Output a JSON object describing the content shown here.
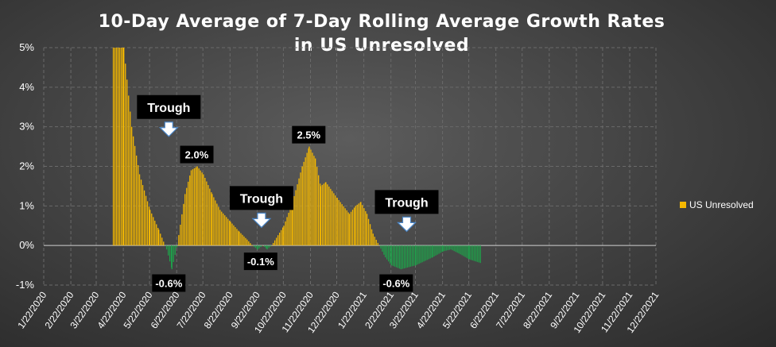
{
  "chart_data": {
    "type": "area",
    "title": "10-Day Average of 7-Day Rolling Average Growth Rates",
    "subtitle": "in US Unresolved",
    "xlabel": "",
    "ylabel": "",
    "y_tick_labels": [
      "5%",
      "4%",
      "3%",
      "2%",
      "1%",
      "0%",
      "-1%"
    ],
    "ylim": [
      -1,
      5
    ],
    "x_tick_labels": [
      "1/22/2020",
      "2/22/2020",
      "3/22/2020",
      "4/22/2020",
      "5/22/2020",
      "6/22/2020",
      "7/22/2020",
      "8/22/2020",
      "9/22/2020",
      "10/22/2020",
      "11/22/2020",
      "12/22/2020",
      "1/22/2021",
      "2/22/2021",
      "3/22/2021",
      "4/22/2021",
      "5/22/2021",
      "6/22/2021",
      "7/22/2021",
      "8/22/2021",
      "9/22/2021",
      "10/22/2021",
      "11/22/2021",
      "12/22/2021"
    ],
    "grid": true,
    "legend_position": "right",
    "series": [
      {
        "name": "US Unresolved",
        "positive_color": "#f5b800",
        "negative_color": "#1fa14a",
        "points": [
          {
            "x": "4/10/2020",
            "y": 5.0
          },
          {
            "x": "4/22/2020",
            "y": 5.0
          },
          {
            "x": "5/1/2020",
            "y": 3.0
          },
          {
            "x": "5/10/2020",
            "y": 1.8
          },
          {
            "x": "5/22/2020",
            "y": 0.9
          },
          {
            "x": "6/1/2020",
            "y": 0.4
          },
          {
            "x": "6/10/2020",
            "y": -0.1
          },
          {
            "x": "6/16/2020",
            "y": -0.6
          },
          {
            "x": "6/22/2020",
            "y": 0.0
          },
          {
            "x": "7/1/2020",
            "y": 1.3
          },
          {
            "x": "7/8/2020",
            "y": 1.9
          },
          {
            "x": "7/15/2020",
            "y": 2.0
          },
          {
            "x": "7/22/2020",
            "y": 1.8
          },
          {
            "x": "8/1/2020",
            "y": 1.3
          },
          {
            "x": "8/10/2020",
            "y": 0.9
          },
          {
            "x": "8/22/2020",
            "y": 0.6
          },
          {
            "x": "9/1/2020",
            "y": 0.35
          },
          {
            "x": "9/10/2020",
            "y": 0.15
          },
          {
            "x": "9/16/2020",
            "y": 0.0
          },
          {
            "x": "9/22/2020",
            "y": -0.1
          },
          {
            "x": "9/28/2020",
            "y": 0.0
          },
          {
            "x": "10/3/2020",
            "y": -0.1
          },
          {
            "x": "10/8/2020",
            "y": 0.0
          },
          {
            "x": "10/22/2020",
            "y": 0.5
          },
          {
            "x": "11/1/2020",
            "y": 1.1
          },
          {
            "x": "11/12/2020",
            "y": 2.0
          },
          {
            "x": "11/20/2020",
            "y": 2.5
          },
          {
            "x": "11/27/2020",
            "y": 2.2
          },
          {
            "x": "12/3/2020",
            "y": 1.5
          },
          {
            "x": "12/9/2020",
            "y": 1.6
          },
          {
            "x": "12/22/2020",
            "y": 1.2
          },
          {
            "x": "1/5/2021",
            "y": 0.8
          },
          {
            "x": "1/12/2021",
            "y": 1.0
          },
          {
            "x": "1/18/2021",
            "y": 1.1
          },
          {
            "x": "1/25/2021",
            "y": 0.8
          },
          {
            "x": "2/1/2021",
            "y": 0.3
          },
          {
            "x": "2/8/2021",
            "y": 0.0
          },
          {
            "x": "2/15/2021",
            "y": -0.3
          },
          {
            "x": "2/22/2021",
            "y": -0.5
          },
          {
            "x": "3/5/2021",
            "y": -0.6
          },
          {
            "x": "3/22/2021",
            "y": -0.5
          },
          {
            "x": "4/10/2021",
            "y": -0.3
          },
          {
            "x": "4/22/2021",
            "y": -0.15
          },
          {
            "x": "5/1/2021",
            "y": -0.1
          },
          {
            "x": "5/10/2021",
            "y": -0.2
          },
          {
            "x": "5/22/2021",
            "y": -0.35
          },
          {
            "x": "6/5/2021",
            "y": -0.45
          }
        ]
      }
    ],
    "annotations": [
      {
        "kind": "callout",
        "text": "Trough",
        "x": "6/13/2020",
        "y": 3.5,
        "arrow": true
      },
      {
        "kind": "callout",
        "text": "Trough",
        "x": "9/27/2020",
        "y": 1.2,
        "arrow": true
      },
      {
        "kind": "callout",
        "text": "Trough",
        "x": "3/12/2021",
        "y": 1.1,
        "arrow": true
      },
      {
        "kind": "data_label",
        "text": "2.0%",
        "x": "7/15/2020",
        "y": 2.3
      },
      {
        "kind": "data_label",
        "text": "2.5%",
        "x": "11/20/2020",
        "y": 2.8
      },
      {
        "kind": "data_label",
        "text": "-0.6%",
        "x": "6/13/2020",
        "y": -0.95
      },
      {
        "kind": "data_label",
        "text": "-0.1%",
        "x": "9/26/2020",
        "y": -0.4
      },
      {
        "kind": "data_label",
        "text": "-0.6%",
        "x": "2/28/2021",
        "y": -0.95
      }
    ]
  }
}
